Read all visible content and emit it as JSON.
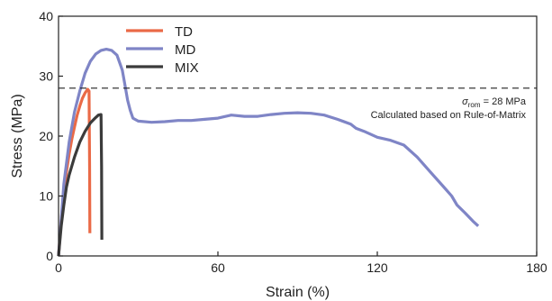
{
  "chart_data": {
    "type": "line",
    "title": "",
    "xlabel": "Strain (%)",
    "ylabel": "Stress (MPa)",
    "xlim": [
      0,
      180
    ],
    "ylim": [
      0,
      40
    ],
    "xticks": [
      0,
      60,
      120,
      180
    ],
    "yticks": [
      0,
      10,
      20,
      30,
      40
    ],
    "grid": false,
    "legend_position": "top-left",
    "series": [
      {
        "name": "TD",
        "color": "#ea6a47",
        "x": [
          0,
          1,
          2,
          3,
          4,
          5,
          6,
          7,
          8,
          9,
          10,
          11,
          11.5,
          11.7,
          11.8
        ],
        "y": [
          0,
          6,
          10.5,
          14,
          17,
          19.5,
          21.5,
          23.5,
          25,
          26.3,
          27.2,
          27.8,
          27.5,
          15,
          3.8
        ]
      },
      {
        "name": "MD",
        "color": "#7f85c6",
        "x": [
          0,
          2,
          4,
          6,
          8,
          10,
          12,
          14,
          16,
          18,
          20,
          22,
          24,
          25,
          26,
          27,
          28,
          30,
          35,
          40,
          45,
          50,
          55,
          60,
          65,
          70,
          75,
          80,
          85,
          90,
          95,
          100,
          105,
          110,
          112,
          115,
          120,
          125,
          130,
          135,
          140,
          145,
          148,
          150,
          153,
          156,
          158
        ],
        "y": [
          0,
          12,
          19,
          24,
          27.5,
          30.5,
          32.5,
          33.7,
          34.3,
          34.5,
          34.3,
          33.5,
          31,
          28.5,
          26,
          24.3,
          23,
          22.5,
          22.3,
          22.4,
          22.6,
          22.6,
          22.8,
          23,
          23.5,
          23.3,
          23.3,
          23.6,
          23.8,
          23.9,
          23.8,
          23.5,
          22.8,
          22,
          21.3,
          20.8,
          19.8,
          19.3,
          18.5,
          16.5,
          14,
          11.5,
          10,
          8.5,
          7.2,
          5.8,
          5
        ]
      },
      {
        "name": "MIX",
        "color": "#3b3b3b",
        "x": [
          0,
          1,
          2,
          3,
          4,
          6,
          8,
          10,
          12,
          14,
          15,
          16,
          16.2,
          16.3
        ],
        "y": [
          0,
          5,
          8.5,
          11.5,
          13.5,
          16.5,
          19,
          20.8,
          22.2,
          23.1,
          23.5,
          23.6,
          15,
          2.7
        ]
      }
    ],
    "reference_line": {
      "y": 28,
      "label_prefix": "σ",
      "label_subscript": "rom",
      "label_value": " = 28 MPa",
      "note": "Calculated based on Rule-of-Matrix"
    }
  }
}
